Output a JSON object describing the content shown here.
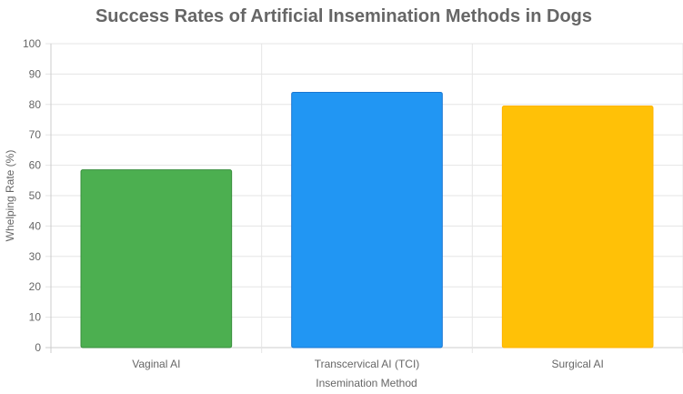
{
  "chart_data": {
    "type": "bar",
    "title": "Success Rates of Artificial Insemination Methods in Dogs",
    "xlabel": "Insemination Method",
    "ylabel": "Whelping Rate (%)",
    "categories": [
      "Vaginal AI",
      "Transcervical AI (TCI)",
      "Surgical AI"
    ],
    "values": [
      58.5,
      84,
      79.5
    ],
    "ylim": [
      0,
      100
    ],
    "yticks": [
      0,
      10,
      20,
      30,
      40,
      50,
      60,
      70,
      80,
      90,
      100
    ],
    "grid": true,
    "legend": "none",
    "bar_colors": [
      "#4caf50",
      "#2196f3",
      "#ffc107"
    ],
    "bar_border_colors": [
      "#388e3c",
      "#1976d2",
      "#ffb300"
    ]
  }
}
